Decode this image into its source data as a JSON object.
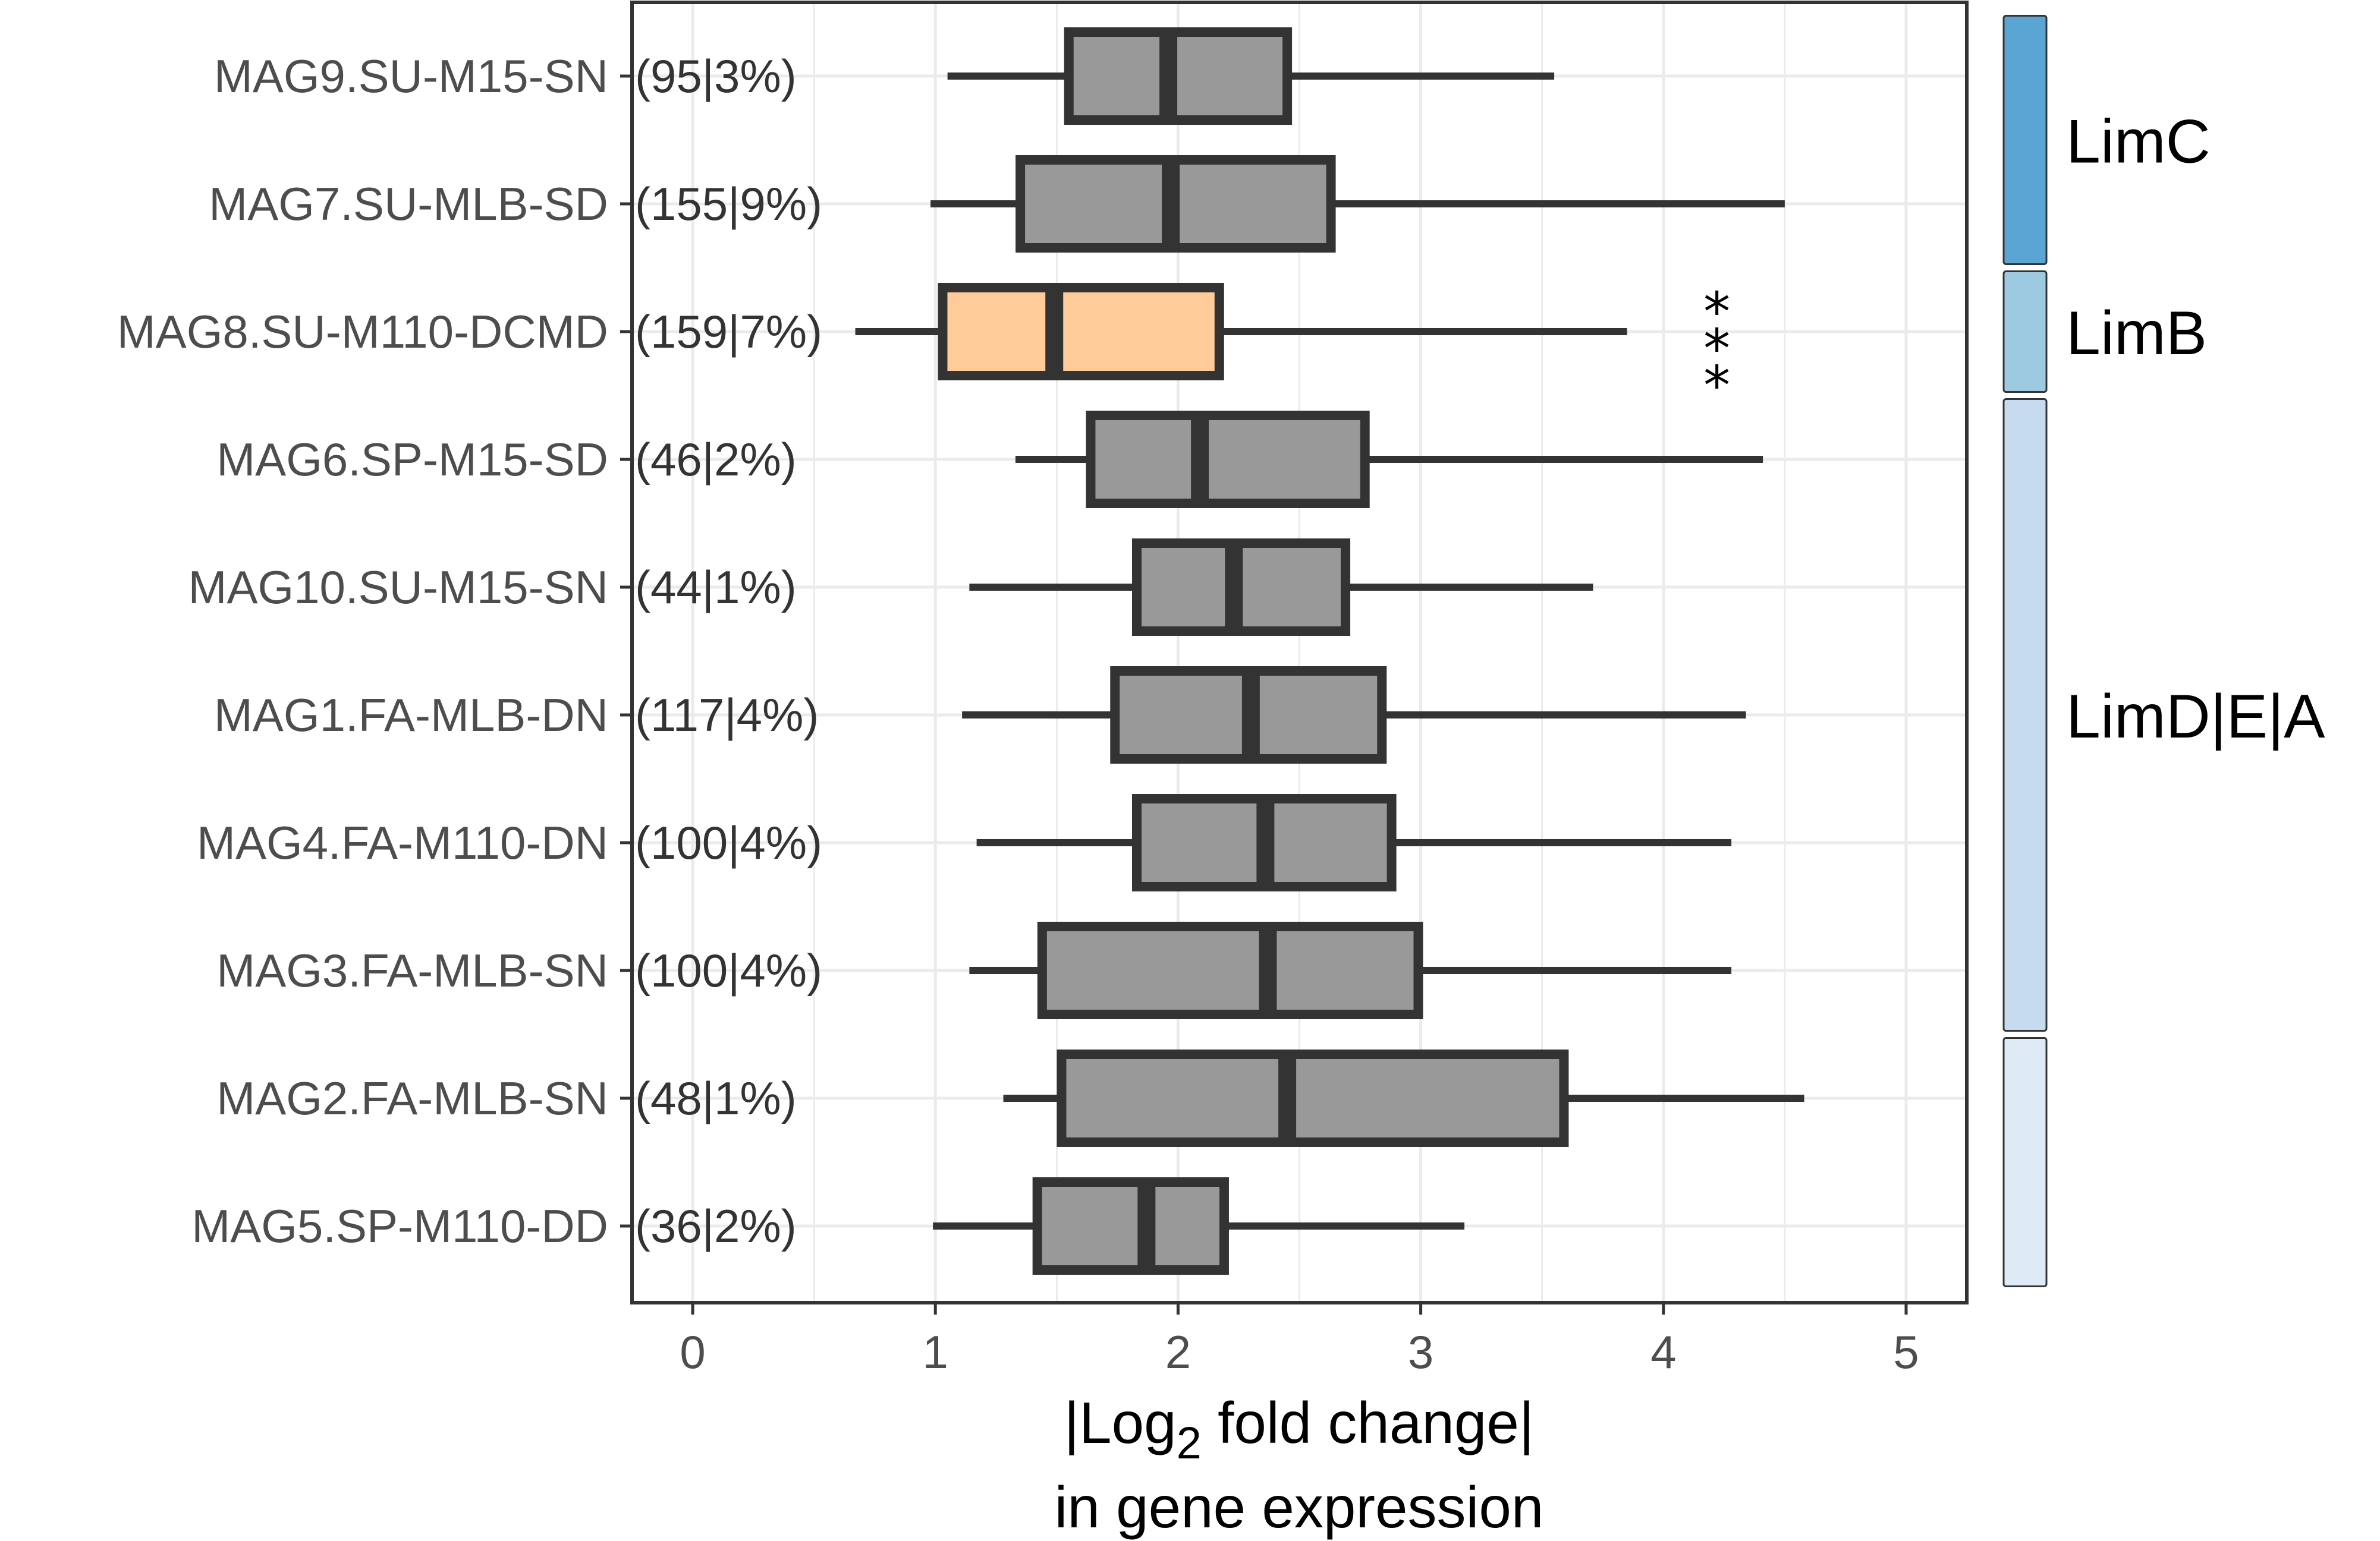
{
  "chart_data": {
    "type": "boxplot",
    "orientation": "horizontal",
    "x_axis": {
      "title_prefix": "|Log",
      "title_subscript": "2",
      "title_suffix": " fold change|",
      "title_line2": "in gene expression",
      "min": -0.25,
      "max": 5.25,
      "ticks": [
        0,
        1,
        2,
        3,
        4,
        5
      ],
      "tick_labels": [
        "0",
        "1",
        "2",
        "3",
        "4",
        "5"
      ]
    },
    "grid": true,
    "categories": [
      {
        "label": "MAG9.SU-M15-SN",
        "annotation": "(95|3%)",
        "whisker_low": 1.05,
        "q1": 1.55,
        "median": 1.96,
        "q3": 2.45,
        "whisker_high": 3.55,
        "highlight": false
      },
      {
        "label": "MAG7.SU-MLB-SD",
        "annotation": "(155|9%)",
        "whisker_low": 0.98,
        "q1": 1.35,
        "median": 1.97,
        "q3": 2.63,
        "whisker_high": 4.5,
        "highlight": false
      },
      {
        "label": "MAG8.SU-M110-DCMD",
        "annotation": "(159|7%)",
        "whisker_low": 0.67,
        "q1": 1.03,
        "median": 1.49,
        "q3": 2.17,
        "whisker_high": 3.85,
        "highlight": true,
        "significance": "***"
      },
      {
        "label": "MAG6.SP-M15-SD",
        "annotation": "(46|2%)",
        "whisker_low": 1.33,
        "q1": 1.64,
        "median": 2.09,
        "q3": 2.77,
        "whisker_high": 4.41,
        "highlight": false
      },
      {
        "label": "MAG10.SU-M15-SN",
        "annotation": "(44|1%)",
        "whisker_low": 1.14,
        "q1": 1.83,
        "median": 2.23,
        "q3": 2.69,
        "whisker_high": 3.71,
        "highlight": false
      },
      {
        "label": "MAG1.FA-MLB-DN",
        "annotation": "(117|4%)",
        "whisker_low": 1.11,
        "q1": 1.74,
        "median": 2.3,
        "q3": 2.84,
        "whisker_high": 4.34,
        "highlight": false
      },
      {
        "label": "MAG4.FA-M110-DN",
        "annotation": "(100|4%)",
        "whisker_low": 1.17,
        "q1": 1.83,
        "median": 2.36,
        "q3": 2.88,
        "whisker_high": 4.28,
        "highlight": false
      },
      {
        "label": "MAG3.FA-MLB-SN",
        "annotation": "(100|4%)",
        "whisker_low": 1.14,
        "q1": 1.44,
        "median": 2.37,
        "q3": 2.99,
        "whisker_high": 4.28,
        "highlight": false
      },
      {
        "label": "MAG2.FA-MLB-SN",
        "annotation": "(48|1%)",
        "whisker_low": 1.28,
        "q1": 1.52,
        "median": 2.45,
        "q3": 3.59,
        "whisker_high": 4.58,
        "highlight": false
      },
      {
        "label": "MAG5.SP-M110-DD",
        "annotation": "(36|2%)",
        "whisker_low": 0.99,
        "q1": 1.42,
        "median": 1.87,
        "q3": 2.19,
        "whisker_high": 3.18,
        "highlight": false
      }
    ],
    "groups": [
      {
        "label": "LimC",
        "start": 0,
        "end": 1,
        "color": "#5ba5d5"
      },
      {
        "label": "LimB",
        "start": 2,
        "end": 2,
        "color": "#9ecae1"
      },
      {
        "label": "LimD|E|A",
        "start": 3,
        "end": 7,
        "color": "#c6dbef"
      },
      {
        "label": "",
        "start": 8,
        "end": 9,
        "color": "#deebf7"
      }
    ],
    "colors": {
      "box_fill": "#999999",
      "highlight_fill": "#ffcc99",
      "box_stroke": "#333333",
      "grid": "#ebebeb",
      "panel_border": "#333333",
      "group_border": "#333333"
    }
  }
}
